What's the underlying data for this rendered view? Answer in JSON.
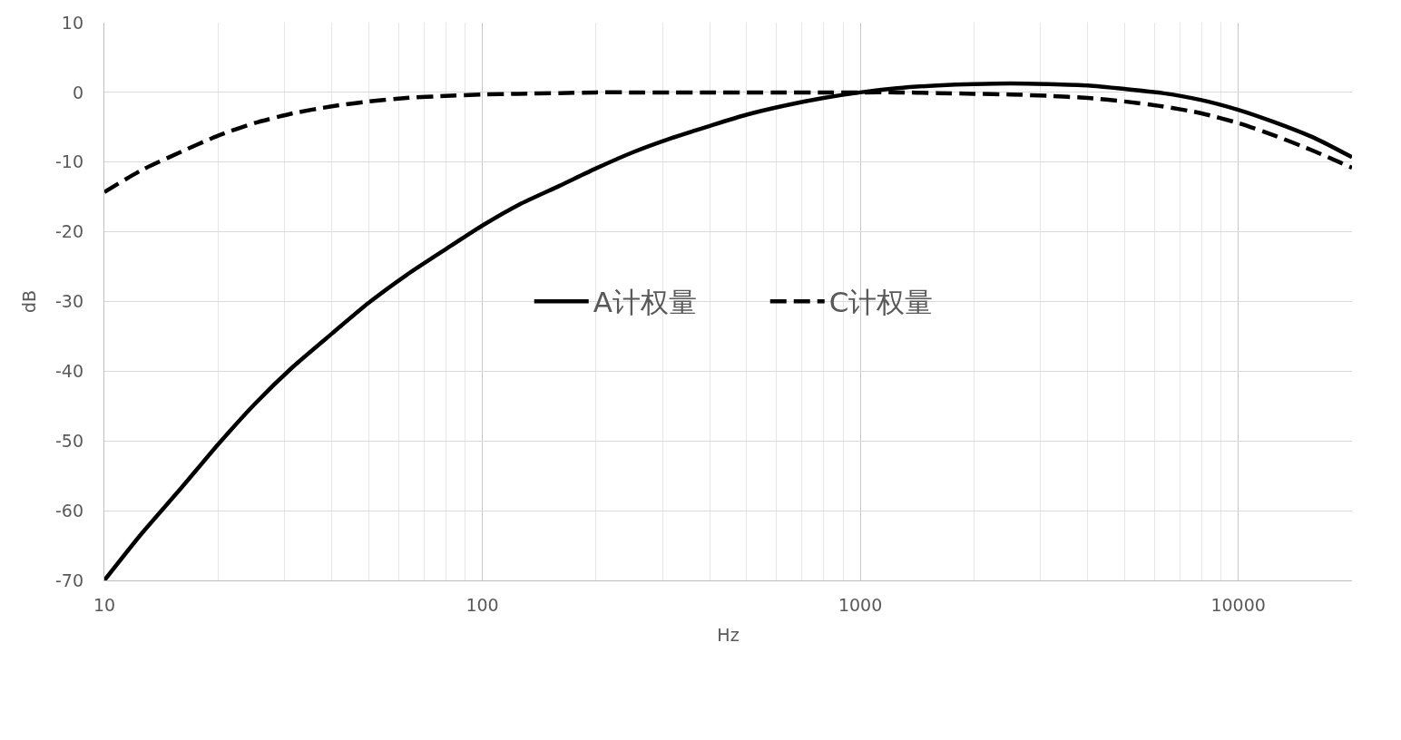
{
  "chart_data": {
    "type": "line",
    "xlabel": "Hz",
    "ylabel": "dB",
    "x": [
      10,
      12.5,
      16,
      20,
      25,
      31.5,
      40,
      50,
      63,
      80,
      100,
      125,
      160,
      200,
      250,
      315,
      400,
      500,
      630,
      800,
      1000,
      1250,
      1600,
      2000,
      2500,
      3150,
      4000,
      5000,
      6300,
      8000,
      10000,
      12500,
      16000,
      20000
    ],
    "series": [
      {
        "name": "A计权量",
        "color": "#000000",
        "line_style": "solid",
        "values": [
          -70,
          -63.4,
          -56.7,
          -50.5,
          -44.7,
          -39.4,
          -34.6,
          -30.2,
          -26.2,
          -22.5,
          -19.1,
          -16.1,
          -13.4,
          -10.9,
          -8.6,
          -6.6,
          -4.8,
          -3.2,
          -1.9,
          -0.8,
          0,
          0.6,
          1.0,
          1.2,
          1.3,
          1.2,
          1.0,
          0.5,
          -0.1,
          -1.1,
          -2.5,
          -4.3,
          -6.6,
          -9.3
        ]
      },
      {
        "name": "C计权量",
        "color": "#000000",
        "line_style": "dashed",
        "values": [
          -14.3,
          -11.2,
          -8.5,
          -6.2,
          -4.4,
          -3.0,
          -2.0,
          -1.3,
          -0.8,
          -0.5,
          -0.3,
          -0.2,
          -0.1,
          0,
          0,
          0,
          0,
          0,
          0,
          0,
          0,
          0,
          -0.1,
          -0.2,
          -0.3,
          -0.5,
          -0.8,
          -1.3,
          -2.0,
          -3.0,
          -4.4,
          -6.2,
          -8.5,
          -10.8
        ]
      }
    ],
    "log": "x",
    "xlim": [
      10,
      20000
    ],
    "xticks": [
      10,
      100,
      1000,
      10000
    ],
    "ylim": [
      -70,
      10
    ],
    "yticks": [
      -70,
      -60,
      -50,
      -40,
      -30,
      -20,
      -10,
      0,
      10
    ],
    "grid": true,
    "legend": "center"
  }
}
